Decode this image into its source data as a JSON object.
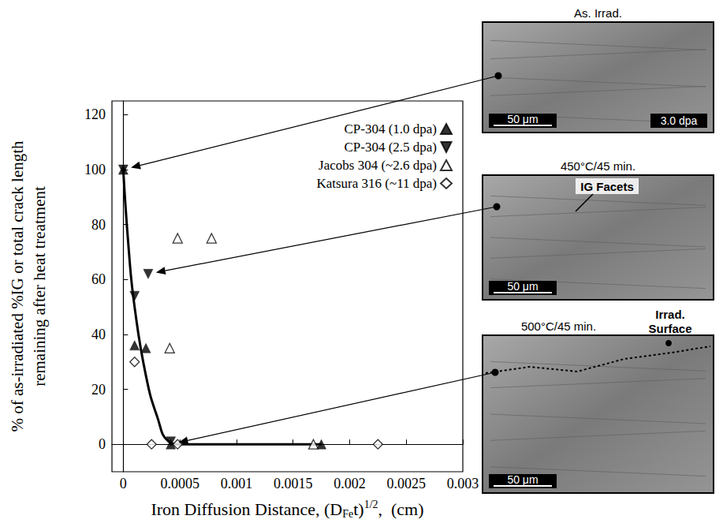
{
  "chart_data": {
    "type": "scatter",
    "xlabel": [
      "Iron Diffusion Distance, (D",
      "Fe",
      "t)",
      "1/2",
      ",  (cm)"
    ],
    "ylabel": [
      "% of as-irradiated %IG or total crack length",
      "remaining after heat treatment"
    ],
    "xlim": [
      -0.0001,
      0.003
    ],
    "xticks": [
      0,
      0.0005,
      0.001,
      0.0015,
      0.002,
      0.0025,
      0.003
    ],
    "ylim": [
      -10,
      125
    ],
    "yticks": [
      0,
      20,
      40,
      60,
      80,
      100,
      120
    ],
    "grid": false,
    "legend": "upper right",
    "series": [
      {
        "name": "CP-304 (1.0 dpa)",
        "color": "#000000",
        "marker": "triangle",
        "x": [
          0,
          0.0001,
          0.0002,
          0.00042,
          0.00175
        ],
        "values": [
          100,
          36,
          35,
          0,
          0
        ]
      },
      {
        "name": "CP-304 (2.5 dpa)",
        "color": "#000000",
        "marker": "triangle-down",
        "x": [
          0,
          0.0001,
          0.00022,
          0.00042
        ],
        "values": [
          100,
          54,
          62,
          1
        ]
      },
      {
        "name": "Jacobs 304 (~2.6 dpa)",
        "color": "#000000",
        "marker": "triangle-open",
        "x": [
          0.00048,
          0.00078,
          0.00041,
          0.00168
        ],
        "values": [
          75,
          75,
          35,
          0
        ]
      },
      {
        "name": "Katsura 316 (~11 dpa)",
        "color": "#000000",
        "marker": "diamond-open",
        "x": [
          0.0001,
          0.00025,
          0.00048,
          0.00225
        ],
        "values": [
          30,
          0,
          0,
          0
        ]
      }
    ],
    "fit_curve": {
      "type": "line",
      "color": "#000000",
      "x": [
        0,
        5e-05,
        0.0001,
        0.0002,
        0.0003,
        0.0004,
        0.0005,
        0.00175
      ],
      "values": [
        100,
        70,
        50,
        25,
        10,
        1,
        0,
        0
      ]
    },
    "panels": [
      {
        "title": "As. Irrad.",
        "scale_bar": "50 μm",
        "dose_label": "3.0 dpa",
        "arrow_to": [
          0,
          100
        ]
      },
      {
        "title": "450°C/45 min.",
        "scale_bar": "50 μm",
        "label": "IG Facets",
        "arrow_to": [
          0.00022,
          62
        ]
      },
      {
        "title": "500°C/45 min.",
        "scale_bar": "50 μm",
        "label": "Irrad. Surface",
        "arrow_to": [
          0.00042,
          0
        ]
      }
    ]
  }
}
